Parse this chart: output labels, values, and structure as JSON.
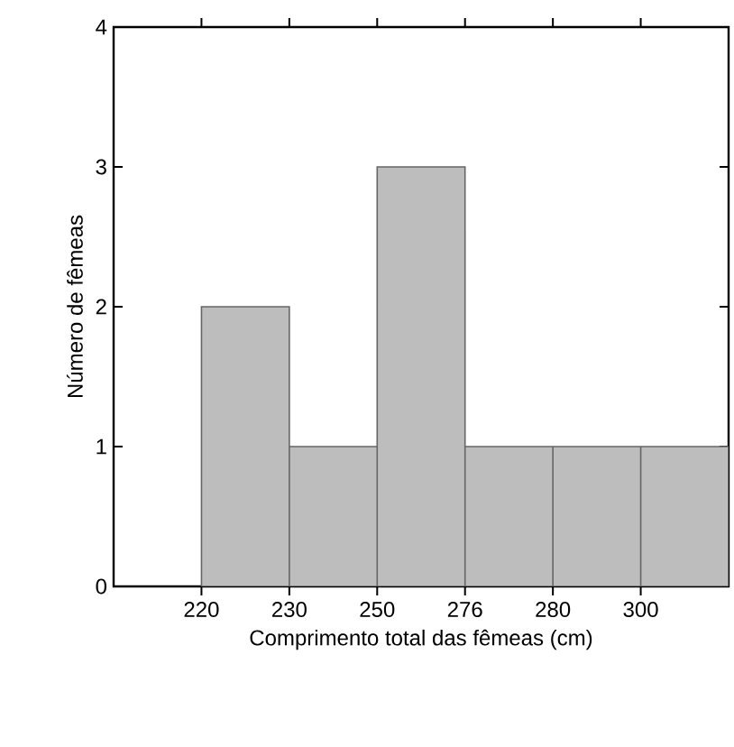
{
  "chart_data": {
    "type": "bar",
    "xlabel": "Comprimento total das fêmeas (cm)",
    "ylabel": "Número de fêmeas",
    "categories": [
      "220",
      "230",
      "250",
      "276",
      "280",
      "300"
    ],
    "values": [
      2,
      1,
      3,
      1,
      1,
      1
    ],
    "color": "#bdbdbd",
    "ylim": [
      0,
      4
    ],
    "yticks": [
      0,
      1,
      2,
      3,
      4
    ]
  }
}
